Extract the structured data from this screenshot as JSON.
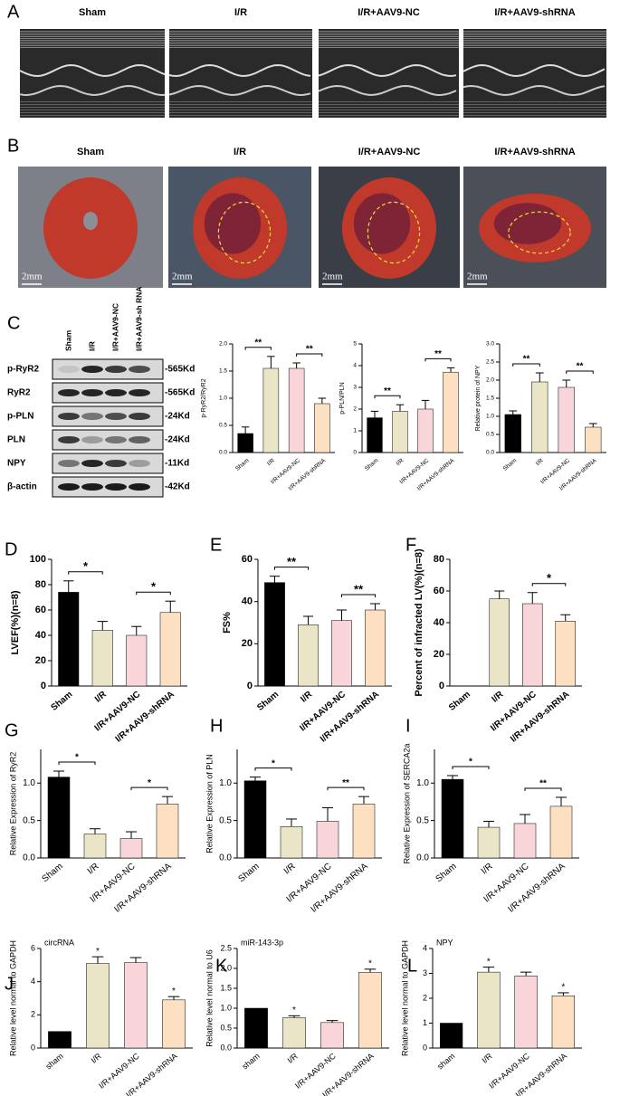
{
  "panel_labels": [
    "A",
    "B",
    "C",
    "D",
    "E",
    "F",
    "G",
    "H",
    "I",
    "J",
    "K",
    "L"
  ],
  "echo": {
    "labels": [
      "Sham",
      "I/R",
      "I/R+AAV9-NC",
      "I/R+AAV9-shRNA"
    ]
  },
  "hearts": {
    "labels": [
      "Sham",
      "I/R",
      "I/R+AAV9-NC",
      "I/R+AAV9-shRNA"
    ],
    "scale_bar": "2mm"
  },
  "blot": {
    "lanes": [
      "Sham",
      "I/R",
      "I/R+AAV9-NC",
      "I/R+AAV9-sh RNA"
    ],
    "rows": [
      {
        "protein": "p-RyR2",
        "size": "-565Kd"
      },
      {
        "protein": "RyR2",
        "size": "-565Kd"
      },
      {
        "protein": "p-PLN",
        "size": "-24Kd"
      },
      {
        "protein": "PLN",
        "size": "-24Kd"
      },
      {
        "protein": "NPY",
        "size": "-11Kd"
      },
      {
        "protein": "β-actin",
        "size": "-42Kd"
      }
    ]
  },
  "chart_data": [
    {
      "type": "bar",
      "ylabel": "p-RyR2/RyR2",
      "categories": [
        "Sham",
        "I/R",
        "I/R+AAV9-NC",
        "I/R+AAV9-shRNA"
      ],
      "values": [
        0.35,
        1.55,
        1.55,
        0.9
      ],
      "errors": [
        0.12,
        0.22,
        0.1,
        0.1
      ],
      "colors": [
        "#000000",
        "#e9e5c6",
        "#f8d5d8",
        "#fde0c2"
      ],
      "ylim": [
        0,
        2.0
      ],
      "yticks": [
        {
          "value": 0,
          "label": "0.0"
        },
        {
          "value": 0.5,
          "label": "0.5"
        },
        {
          "value": 1,
          "label": "1.0"
        },
        {
          "value": 1.5,
          "label": "1.5"
        },
        {
          "value": 2,
          "label": "2.0"
        }
      ],
      "comparisons": [
        {
          "groups": [
            "Sham",
            "I/R"
          ],
          "label": "**"
        },
        {
          "groups": [
            "I/R+AAV9-NC",
            "I/R+AAV9-shRNA"
          ],
          "label": "**"
        }
      ]
    },
    {
      "type": "bar",
      "ylabel": "p-PLN/PLN",
      "categories": [
        "Sham",
        "I/R",
        "I/R+AAV9-NC",
        "I/R+AAV9-shRNA"
      ],
      "values": [
        1.6,
        1.9,
        2.0,
        3.7
      ],
      "errors": [
        0.3,
        0.3,
        0.4,
        0.2
      ],
      "colors": [
        "#000000",
        "#e9e5c6",
        "#f8d5d8",
        "#fde0c2"
      ],
      "ylim": [
        0,
        5
      ],
      "yticks": [
        0,
        1,
        2,
        3,
        4,
        5
      ],
      "comparisons": [
        {
          "groups": [
            "Sham",
            "I/R"
          ],
          "label": "**"
        },
        {
          "groups": [
            "I/R+AAV9-NC",
            "I/R+AAV9-shRNA"
          ],
          "label": "**"
        }
      ]
    },
    {
      "type": "bar",
      "ylabel": "Relative protein of NPY",
      "categories": [
        "Sham",
        "I/R",
        "I/R+AAV9-NC",
        "I/R+AAV9-shRNA"
      ],
      "values": [
        1.05,
        1.95,
        1.8,
        0.7
      ],
      "errors": [
        0.1,
        0.25,
        0.2,
        0.1
      ],
      "colors": [
        "#000000",
        "#e9e5c6",
        "#f8d5d8",
        "#fde0c2"
      ],
      "ylim": [
        0,
        3.0
      ],
      "yticks": [
        {
          "value": 0,
          "label": "0.0"
        },
        {
          "value": 0.5,
          "label": "0.5"
        },
        {
          "value": 1,
          "label": "1.0"
        },
        {
          "value": 1.5,
          "label": "1.5"
        },
        {
          "value": 2,
          "label": "2.0"
        },
        {
          "value": 2.5,
          "label": "2.5"
        },
        {
          "value": 3,
          "label": "3.0"
        }
      ],
      "comparisons": [
        {
          "groups": [
            "Sham",
            "I/R"
          ],
          "label": "**"
        },
        {
          "groups": [
            "I/R+AAV9-NC",
            "I/R+AAV9-shRNA"
          ],
          "label": "**"
        }
      ]
    },
    {
      "type": "bar",
      "ylabel": "LVEF(%)(n=8)",
      "categories": [
        "Sham",
        "I/R",
        "I/R+AAV9-NC",
        "I/R+AAV9-shRNA"
      ],
      "values": [
        74,
        44,
        40,
        58
      ],
      "errors": [
        9,
        7,
        7,
        9
      ],
      "colors": [
        "#000000",
        "#e9e5c6",
        "#f8d5d8",
        "#fde0c2"
      ],
      "ylim": [
        0,
        100
      ],
      "yticks": [
        0,
        20,
        40,
        60,
        80,
        100
      ],
      "comparisons": [
        {
          "groups": [
            "Sham",
            "I/R"
          ],
          "label": "*"
        },
        {
          "groups": [
            "I/R+AAV9-NC",
            "I/R+AAV9-shRNA"
          ],
          "label": "*"
        }
      ]
    },
    {
      "type": "bar",
      "ylabel": "FS%",
      "categories": [
        "Sham",
        "I/R",
        "I/R+AAV9-NC",
        "I/R+AAV9-shRNA"
      ],
      "values": [
        49,
        29,
        31,
        36
      ],
      "errors": [
        3,
        4,
        5,
        3
      ],
      "colors": [
        "#000000",
        "#e9e5c6",
        "#f8d5d8",
        "#fde0c2"
      ],
      "ylim": [
        0,
        60
      ],
      "yticks": [
        0,
        20,
        40,
        60
      ],
      "comparisons": [
        {
          "groups": [
            "Sham",
            "I/R"
          ],
          "label": "**"
        },
        {
          "groups": [
            "I/R+AAV9-NC",
            "I/R+AAV9-shRNA"
          ],
          "label": "**"
        }
      ]
    },
    {
      "type": "bar",
      "ylabel": "Percent of infracted LV(%)(n=8)",
      "categories": [
        "Sham",
        "I/R",
        "I/R+AAV9-NC",
        "I/R+AAV9-shRNA"
      ],
      "values": [
        0,
        55,
        52,
        41
      ],
      "errors": [
        null,
        5,
        7,
        4
      ],
      "colors": [
        "#000000",
        "#e9e5c6",
        "#f8d5d8",
        "#fde0c2"
      ],
      "ylim": [
        0,
        80
      ],
      "yticks": [
        0,
        20,
        40,
        60,
        80
      ],
      "comparisons": [
        {
          "groups": [
            "I/R+AAV9-NC",
            "I/R+AAV9-shRNA"
          ],
          "label": "*"
        }
      ]
    },
    {
      "type": "bar",
      "ylabel": "Relative Expression of RyR2",
      "categories": [
        "Sham",
        "I/R",
        "I/R+AAV9-NC",
        "I/R+AAV9-shRNA"
      ],
      "values": [
        1.08,
        0.32,
        0.26,
        0.72
      ],
      "errors": [
        0.08,
        0.07,
        0.09,
        0.1
      ],
      "colors": [
        "#000000",
        "#e9e5c6",
        "#f8d5d8",
        "#fde0c2"
      ],
      "ylim": [
        0,
        1.45
      ],
      "yticks": [
        {
          "value": 0,
          "label": "0.0"
        },
        {
          "value": 0.5,
          "label": "0.5"
        },
        {
          "value": 1,
          "label": "1.0"
        }
      ],
      "comparisons": [
        {
          "groups": [
            "Sham",
            "I/R"
          ],
          "label": "*"
        },
        {
          "groups": [
            "I/R+AAV9-NC",
            "I/R+AAV9-shRNA"
          ],
          "label": "*"
        }
      ]
    },
    {
      "type": "bar",
      "ylabel": "Relative Expression of PLN",
      "categories": [
        "Sham",
        "I/R",
        "I/R+AAV9-NC",
        "I/R+AAV9-shRNA"
      ],
      "values": [
        1.03,
        0.42,
        0.49,
        0.72
      ],
      "errors": [
        0.05,
        0.1,
        0.18,
        0.1
      ],
      "colors": [
        "#000000",
        "#e9e5c6",
        "#f8d5d8",
        "#fde0c2"
      ],
      "ylim": [
        0,
        1.45
      ],
      "yticks": [
        {
          "value": 0,
          "label": "0.0"
        },
        {
          "value": 0.5,
          "label": "0.5"
        },
        {
          "value": 1,
          "label": "1.0"
        }
      ],
      "comparisons": [
        {
          "groups": [
            "Sham",
            "I/R"
          ],
          "label": "*"
        },
        {
          "groups": [
            "I/R+AAV9-NC",
            "I/R+AAV9-shRNA"
          ],
          "label": "**"
        }
      ]
    },
    {
      "type": "bar",
      "ylabel": "Relative Expression of SERCA2a",
      "categories": [
        "Sham",
        "I/R",
        "I/R+AAV9-NC",
        "I/R+AAV9-shRNA"
      ],
      "values": [
        1.05,
        0.41,
        0.46,
        0.69
      ],
      "errors": [
        0.05,
        0.08,
        0.12,
        0.12
      ],
      "colors": [
        "#000000",
        "#e9e5c6",
        "#f8d5d8",
        "#fde0c2"
      ],
      "ylim": [
        0,
        1.45
      ],
      "yticks": [
        {
          "value": 0,
          "label": "0.0"
        },
        {
          "value": 0.5,
          "label": "0.5"
        },
        {
          "value": 1,
          "label": "1.0"
        }
      ],
      "comparisons": [
        {
          "groups": [
            "Sham",
            "I/R"
          ],
          "label": "*"
        },
        {
          "groups": [
            "I/R+AAV9-NC",
            "I/R+AAV9-shRNA"
          ],
          "label": "**"
        }
      ]
    },
    {
      "type": "bar",
      "subtitle": "circRNA",
      "ylabel": "Relative level normal to GAPDH",
      "categories": [
        "sham",
        "I/R",
        "I/R+AAV9-NC",
        "I/R+AAV9-shRNA"
      ],
      "values": [
        1,
        5.1,
        5.15,
        2.9
      ],
      "errors": [
        null,
        0.4,
        0.3,
        0.2
      ],
      "markers": [
        null,
        "*",
        null,
        "*"
      ],
      "colors": [
        "#000000",
        "#e9e5c6",
        "#f8d5d8",
        "#fde0c2"
      ],
      "ylim": [
        0,
        6
      ],
      "yticks": [
        0,
        2,
        4,
        6
      ]
    },
    {
      "type": "bar",
      "subtitle": "miR-143-3p",
      "ylabel": "Relative level normal to U6",
      "categories": [
        "sham",
        "I/R",
        "I/R+AAV9-NC",
        "I/R+AAV9-shRNA"
      ],
      "values": [
        1.0,
        0.76,
        0.64,
        1.9
      ],
      "errors": [
        null,
        0.05,
        0.05,
        0.08
      ],
      "markers": [
        null,
        "*",
        null,
        "*"
      ],
      "colors": [
        "#000000",
        "#e9e5c6",
        "#f8d5d8",
        "#fde0c2"
      ],
      "ylim": [
        0,
        2.5
      ],
      "yticks": [
        {
          "value": 0,
          "label": "0.0"
        },
        {
          "value": 0.5,
          "label": "0.5"
        },
        {
          "value": 1,
          "label": "1.0"
        },
        {
          "value": 1.5,
          "label": "1.5"
        },
        {
          "value": 2,
          "label": "2.0"
        },
        {
          "value": 2.5,
          "label": "2.5"
        }
      ]
    },
    {
      "type": "bar",
      "subtitle": "NPY",
      "ylabel": "Relative level normal to GAPDH",
      "categories": [
        "sham",
        "I/R",
        "I/R+AAV9-NC",
        "I/R+AAV9-shRNA"
      ],
      "values": [
        1,
        3.05,
        2.9,
        2.1
      ],
      "errors": [
        null,
        0.2,
        0.15,
        0.12
      ],
      "markers": [
        null,
        "*",
        null,
        "*"
      ],
      "colors": [
        "#000000",
        "#e9e5c6",
        "#f8d5d8",
        "#fde0c2"
      ],
      "ylim": [
        0,
        4
      ],
      "yticks": [
        0,
        1,
        2,
        3,
        4
      ]
    }
  ]
}
